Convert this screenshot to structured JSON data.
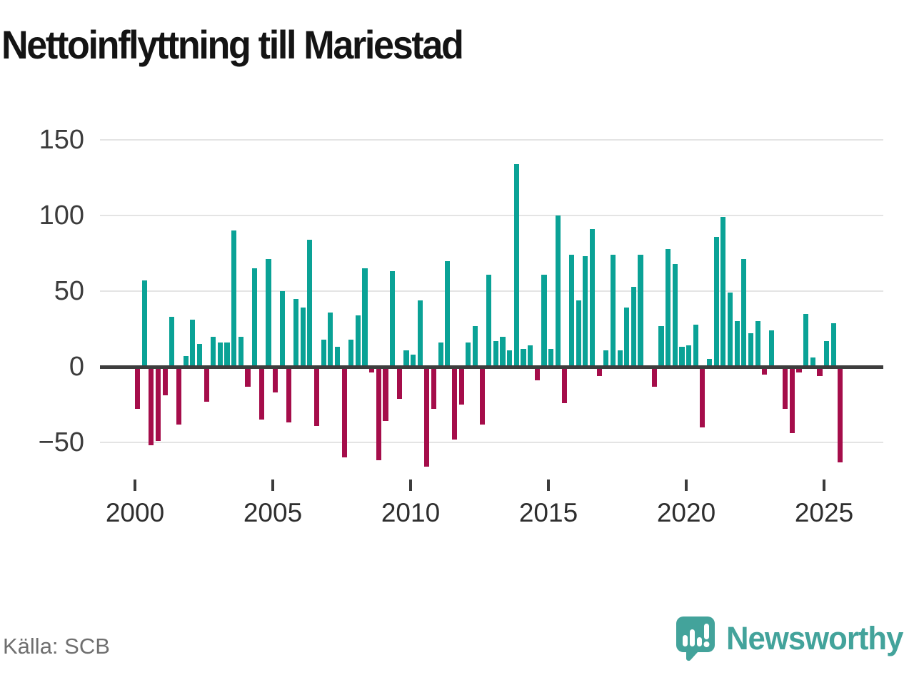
{
  "title": "Nettoinflyttning till Mariestad",
  "source": "Källa: SCB",
  "brand": {
    "name": "Newsworthy",
    "color": "#43a39b"
  },
  "colors": {
    "positive_bar": "#0aa296",
    "negative_bar": "#a50d4a",
    "zero_line": "#3d3d3d",
    "gridline": "#e4e4e4",
    "axis_text": "#3c3c3c",
    "title_text": "#141414",
    "source_text": "#6f6f6f"
  },
  "chart_data": {
    "type": "bar",
    "title": "Nettoinflyttning till Mariestad",
    "xlabel": "",
    "ylabel": "",
    "frequency": "quarterly",
    "start_year": 2000,
    "start_quarter": 1,
    "x": [
      "2000K1",
      "2000K2",
      "2000K3",
      "2000K4",
      "2001K1",
      "2001K2",
      "2001K3",
      "2001K4",
      "2002K1",
      "2002K2",
      "2002K3",
      "2002K4",
      "2003K1",
      "2003K2",
      "2003K3",
      "2003K4",
      "2004K1",
      "2004K2",
      "2004K3",
      "2004K4",
      "2005K1",
      "2005K2",
      "2005K3",
      "2005K4",
      "2006K1",
      "2006K2",
      "2006K3",
      "2006K4",
      "2007K1",
      "2007K2",
      "2007K3",
      "2007K4",
      "2008K1",
      "2008K2",
      "2008K3",
      "2008K4",
      "2009K1",
      "2009K2",
      "2009K3",
      "2009K4",
      "2010K1",
      "2010K2",
      "2010K3",
      "2010K4",
      "2011K1",
      "2011K2",
      "2011K3",
      "2011K4",
      "2012K1",
      "2012K2",
      "2012K3",
      "2012K4",
      "2013K1",
      "2013K2",
      "2013K3",
      "2013K4",
      "2014K1",
      "2014K2",
      "2014K3",
      "2014K4",
      "2015K1",
      "2015K2",
      "2015K3",
      "2015K4",
      "2016K1",
      "2016K2",
      "2016K3",
      "2016K4",
      "2017K1",
      "2017K2",
      "2017K3",
      "2017K4",
      "2018K1",
      "2018K2",
      "2018K3",
      "2018K4",
      "2019K1",
      "2019K2",
      "2019K3",
      "2019K4",
      "2020K1",
      "2020K2",
      "2020K3",
      "2020K4",
      "2021K1",
      "2021K2",
      "2021K3",
      "2021K4",
      "2022K1",
      "2022K2",
      "2022K3",
      "2022K4",
      "2023K1",
      "2023K2",
      "2023K3",
      "2023K4",
      "2024K1",
      "2024K2",
      "2024K3",
      "2024K4",
      "2025K1",
      "2025K2",
      "2025K3"
    ],
    "values": [
      -28,
      57,
      -52,
      -49,
      -19,
      33,
      -38,
      7,
      31,
      15,
      -23,
      20,
      16,
      16,
      90,
      20,
      -13,
      65,
      -35,
      71,
      -17,
      50,
      -37,
      45,
      39,
      84,
      -39,
      18,
      36,
      13,
      -60,
      18,
      34,
      65,
      -4,
      -62,
      -36,
      63,
      -21,
      11,
      8,
      44,
      -66,
      -28,
      16,
      70,
      -48,
      -25,
      16,
      27,
      -38,
      61,
      17,
      20,
      11,
      134,
      12,
      14,
      -9,
      61,
      12,
      100,
      -24,
      74,
      44,
      73,
      91,
      -6,
      11,
      74,
      11,
      39,
      53,
      74,
      0,
      -13,
      27,
      78,
      68,
      13,
      14,
      28,
      -40,
      5,
      86,
      99,
      49,
      30,
      71,
      22,
      30,
      -5,
      24,
      0,
      -28,
      -44,
      -4,
      35,
      6,
      -6,
      17,
      29,
      -63
    ],
    "ylim": [
      -75,
      155
    ],
    "ytick_values": [
      150,
      100,
      50,
      0,
      -50
    ],
    "ytick_labels": [
      "150",
      "100",
      "50",
      "0",
      "−50"
    ],
    "xtick_years": [
      2000,
      2005,
      2010,
      2015,
      2020,
      2025
    ],
    "xtick_labels": [
      "2000",
      "2005",
      "2010",
      "2015",
      "2020",
      "2025"
    ],
    "grid": true,
    "legend": "none"
  }
}
